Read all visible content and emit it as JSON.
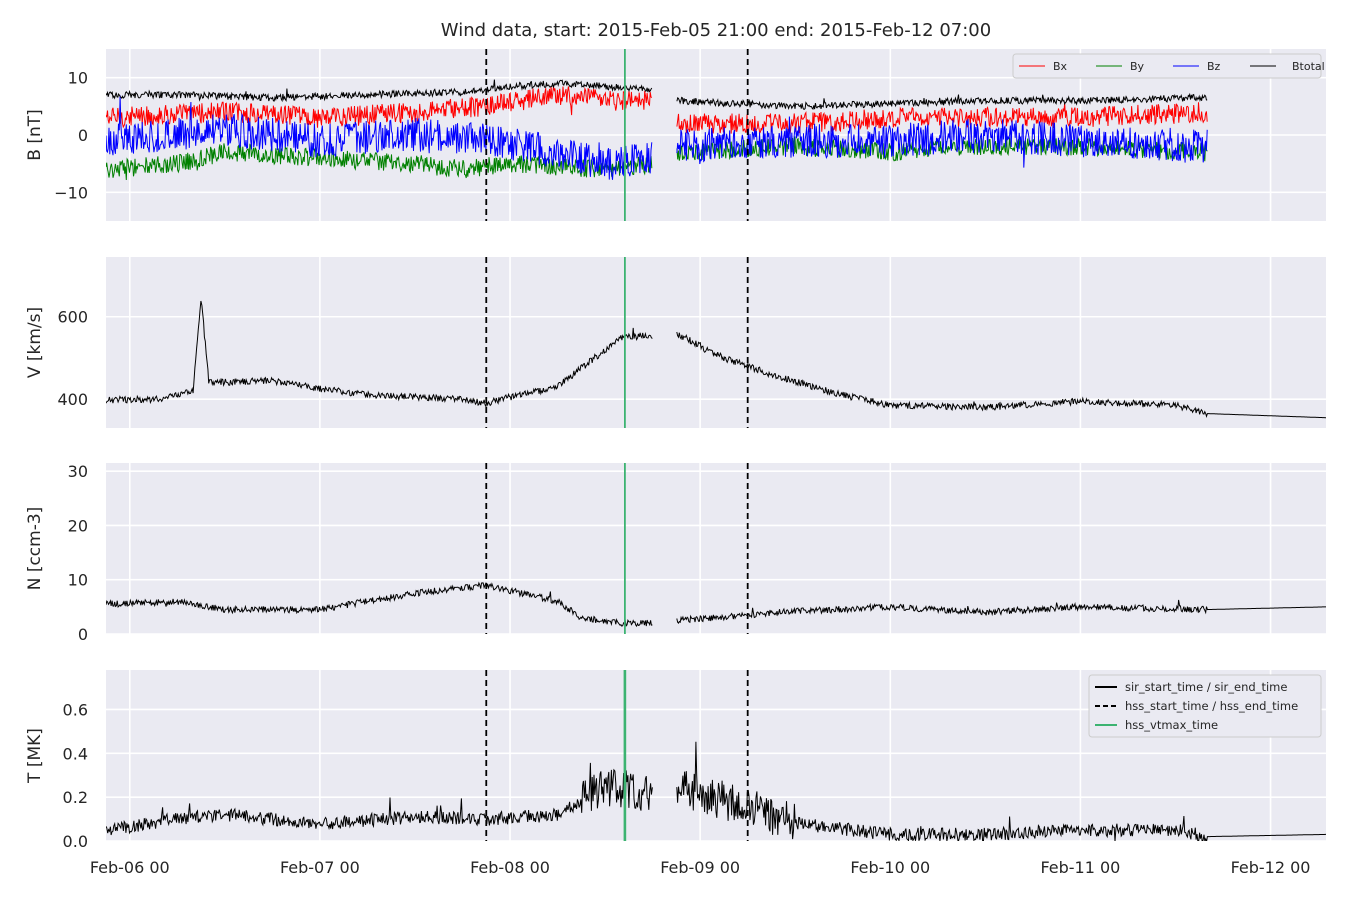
{
  "title": "Wind data, start: 2015-Feb-05 21:00  end: 2015-Feb-12 07:00",
  "chart_data": {
    "type": "line",
    "x_range": [
      "2015-02-05T21:00",
      "2015-02-12T07:00"
    ],
    "x_ticks": [
      {
        "value": "2015-02-06T00:00",
        "label": "Feb-06 00"
      },
      {
        "value": "2015-02-07T00:00",
        "label": "Feb-07 00"
      },
      {
        "value": "2015-02-08T00:00",
        "label": "Feb-08 00"
      },
      {
        "value": "2015-02-09T00:00",
        "label": "Feb-09 00"
      },
      {
        "value": "2015-02-10T00:00",
        "label": "Feb-10 00"
      },
      {
        "value": "2015-02-11T00:00",
        "label": "Feb-11 00"
      },
      {
        "value": "2015-02-12T00:00",
        "label": "Feb-12 00"
      }
    ],
    "markers": {
      "hss_start_time": "2015-02-07T21:00",
      "hss_end_time": "2015-02-09T06:00",
      "hss_vtmax_time": "2015-02-08T14:30"
    },
    "panels": [
      {
        "id": "b",
        "ylabel": "B [nT]",
        "ylim": [
          -15,
          15
        ],
        "yticks": [
          {
            "value": 10,
            "label": "10"
          },
          {
            "value": 0,
            "label": "0"
          },
          {
            "value": -10,
            "label": "−10"
          }
        ],
        "legend": {
          "placement": "top-right",
          "entries": [
            "Bx",
            "By",
            "Bz",
            "Btotal"
          ]
        },
        "data_gap": [
          "2015-02-08T18:00",
          "2015-02-08T21:00"
        ],
        "data_end": "2015-02-11T16:00",
        "series": [
          {
            "name": "Bx",
            "color": "#ff0000",
            "points": [
              [
                "2015-02-05T21:00",
                3
              ],
              [
                "2015-02-06T12:00",
                4
              ],
              [
                "2015-02-07T00:00",
                3
              ],
              [
                "2015-02-07T12:00",
                4
              ],
              [
                "2015-02-07T21:00",
                5
              ],
              [
                "2015-02-08T06:00",
                7
              ],
              [
                "2015-02-08T12:00",
                6
              ],
              [
                "2015-02-08T18:00",
                6
              ],
              [
                "2015-02-08T21:00",
                2
              ],
              [
                "2015-02-09T12:00",
                2
              ],
              [
                "2015-02-10T00:00",
                3
              ],
              [
                "2015-02-10T12:00",
                3
              ],
              [
                "2015-02-11T00:00",
                3
              ],
              [
                "2015-02-11T16:00",
                4
              ]
            ]
          },
          {
            "name": "By",
            "color": "#008000",
            "points": [
              [
                "2015-02-05T21:00",
                -6
              ],
              [
                "2015-02-06T06:00",
                -5
              ],
              [
                "2015-02-06T12:00",
                -3
              ],
              [
                "2015-02-07T00:00",
                -4
              ],
              [
                "2015-02-07T12:00",
                -5
              ],
              [
                "2015-02-07T18:00",
                -6
              ],
              [
                "2015-02-08T00:00",
                -5
              ],
              [
                "2015-02-08T12:00",
                -6
              ],
              [
                "2015-02-08T18:00",
                -5
              ],
              [
                "2015-02-08T21:00",
                -3
              ],
              [
                "2015-02-09T12:00",
                -2
              ],
              [
                "2015-02-10T00:00",
                -3
              ],
              [
                "2015-02-10T12:00",
                -2
              ],
              [
                "2015-02-11T00:00",
                -2
              ],
              [
                "2015-02-11T16:00",
                -3
              ]
            ]
          },
          {
            "name": "Bz",
            "color": "#0000ff",
            "points": [
              [
                "2015-02-05T21:00",
                -1
              ],
              [
                "2015-02-06T06:00",
                0
              ],
              [
                "2015-02-06T12:00",
                1
              ],
              [
                "2015-02-07T00:00",
                -1
              ],
              [
                "2015-02-07T12:00",
                0
              ],
              [
                "2015-02-07T21:00",
                -1
              ],
              [
                "2015-02-08T06:00",
                -3
              ],
              [
                "2015-02-08T12:00",
                -5
              ],
              [
                "2015-02-08T18:00",
                -4
              ],
              [
                "2015-02-08T21:00",
                -2
              ],
              [
                "2015-02-09T12:00",
                -1
              ],
              [
                "2015-02-10T00:00",
                -1
              ],
              [
                "2015-02-10T12:00",
                0
              ],
              [
                "2015-02-11T00:00",
                -1
              ],
              [
                "2015-02-11T16:00",
                -2
              ]
            ]
          },
          {
            "name": "Btotal",
            "color": "#000000",
            "points": [
              [
                "2015-02-05T21:00",
                7
              ],
              [
                "2015-02-06T06:00",
                7
              ],
              [
                "2015-02-06T18:00",
                6.5
              ],
              [
                "2015-02-07T06:00",
                7
              ],
              [
                "2015-02-07T18:00",
                7.5
              ],
              [
                "2015-02-08T00:00",
                8.5
              ],
              [
                "2015-02-08T06:00",
                9
              ],
              [
                "2015-02-08T12:00",
                8.5
              ],
              [
                "2015-02-08T18:00",
                8
              ],
              [
                "2015-02-08T21:00",
                6
              ],
              [
                "2015-02-09T12:00",
                5
              ],
              [
                "2015-02-10T00:00",
                5.5
              ],
              [
                "2015-02-10T12:00",
                6
              ],
              [
                "2015-02-11T00:00",
                6
              ],
              [
                "2015-02-11T16:00",
                6.5
              ]
            ]
          }
        ]
      },
      {
        "id": "v",
        "ylabel": "V [km/s]",
        "ylim": [
          330,
          745
        ],
        "yticks": [
          {
            "value": 600,
            "label": "600"
          },
          {
            "value": 400,
            "label": "400"
          }
        ],
        "data_gap": [
          "2015-02-08T18:00",
          "2015-02-08T21:00"
        ],
        "series": [
          {
            "name": "",
            "color": "#000000",
            "points": [
              [
                "2015-02-05T21:00",
                398
              ],
              [
                "2015-02-06T04:00",
                400
              ],
              [
                "2015-02-06T08:00",
                420
              ],
              [
                "2015-02-06T09:00",
                645
              ],
              [
                "2015-02-06T10:00",
                440
              ],
              [
                "2015-02-06T18:00",
                445
              ],
              [
                "2015-02-07T00:00",
                425
              ],
              [
                "2015-02-07T06:00",
                410
              ],
              [
                "2015-02-07T12:00",
                405
              ],
              [
                "2015-02-07T18:00",
                400
              ],
              [
                "2015-02-07T21:00",
                390
              ],
              [
                "2015-02-08T00:00",
                405
              ],
              [
                "2015-02-08T06:00",
                430
              ],
              [
                "2015-02-08T10:00",
                490
              ],
              [
                "2015-02-08T14:00",
                550
              ],
              [
                "2015-02-08T18:00",
                555
              ],
              [
                "2015-02-08T21:00",
                560
              ],
              [
                "2015-02-09T03:00",
                500
              ],
              [
                "2015-02-09T09:00",
                460
              ],
              [
                "2015-02-09T18:00",
                410
              ],
              [
                "2015-02-10T00:00",
                385
              ],
              [
                "2015-02-10T12:00",
                380
              ],
              [
                "2015-02-11T00:00",
                395
              ],
              [
                "2015-02-11T12:00",
                385
              ],
              [
                "2015-02-11T16:00",
                365
              ],
              [
                "2015-02-12T07:00",
                355
              ]
            ]
          }
        ]
      },
      {
        "id": "n",
        "ylabel": "N [ccm-3]",
        "ylim": [
          0,
          31.5
        ],
        "yticks": [
          {
            "value": 30,
            "label": "30"
          },
          {
            "value": 20,
            "label": "20"
          },
          {
            "value": 10,
            "label": "10"
          },
          {
            "value": 0,
            "label": "0"
          }
        ],
        "data_gap": [
          "2015-02-08T18:00",
          "2015-02-08T21:00"
        ],
        "series": [
          {
            "name": "",
            "color": "#000000",
            "points": [
              [
                "2015-02-05T21:00",
                5.5
              ],
              [
                "2015-02-06T06:00",
                6
              ],
              [
                "2015-02-06T12:00",
                4.5
              ],
              [
                "2015-02-07T00:00",
                4.5
              ],
              [
                "2015-02-07T06:00",
                6
              ],
              [
                "2015-02-07T12:00",
                7.5
              ],
              [
                "2015-02-07T18:00",
                8.5
              ],
              [
                "2015-02-07T21:00",
                9
              ],
              [
                "2015-02-08T00:00",
                8
              ],
              [
                "2015-02-08T06:00",
                6
              ],
              [
                "2015-02-08T09:00",
                3
              ],
              [
                "2015-02-08T14:00",
                2
              ],
              [
                "2015-02-08T18:00",
                2
              ],
              [
                "2015-02-08T21:00",
                2.5
              ],
              [
                "2015-02-09T06:00",
                3.5
              ],
              [
                "2015-02-09T10:00",
                4
              ],
              [
                "2015-02-10T00:00",
                5
              ],
              [
                "2015-02-10T12:00",
                4
              ],
              [
                "2015-02-11T00:00",
                5
              ],
              [
                "2015-02-11T16:00",
                4.5
              ],
              [
                "2015-02-12T07:00",
                5
              ]
            ]
          }
        ]
      },
      {
        "id": "t",
        "ylabel": "T [MK]",
        "ylim": [
          0,
          0.78
        ],
        "yticks": [
          {
            "value": 0.6,
            "label": "0.6"
          },
          {
            "value": 0.4,
            "label": "0.4"
          },
          {
            "value": 0.2,
            "label": "0.2"
          },
          {
            "value": 0.0,
            "label": "0.0"
          }
        ],
        "legend": {
          "placement": "top-right",
          "entries": [
            "sir_start_time / sir_end_time",
            "hss_start_time / hss_end_time",
            "hss_vtmax_time"
          ]
        },
        "data_gap": [
          "2015-02-08T18:00",
          "2015-02-08T21:00"
        ],
        "series": [
          {
            "name": "",
            "color": "#000000",
            "points": [
              [
                "2015-02-05T21:00",
                0.05
              ],
              [
                "2015-02-06T06:00",
                0.1
              ],
              [
                "2015-02-06T12:00",
                0.12
              ],
              [
                "2015-02-07T00:00",
                0.08
              ],
              [
                "2015-02-07T12:00",
                0.11
              ],
              [
                "2015-02-07T21:00",
                0.1
              ],
              [
                "2015-02-08T06:00",
                0.12
              ],
              [
                "2015-02-08T12:00",
                0.25
              ],
              [
                "2015-02-08T18:00",
                0.22
              ],
              [
                "2015-02-08T21:00",
                0.25
              ],
              [
                "2015-02-09T06:00",
                0.15
              ],
              [
                "2015-02-09T12:00",
                0.08
              ],
              [
                "2015-02-10T00:00",
                0.03
              ],
              [
                "2015-02-10T12:00",
                0.03
              ],
              [
                "2015-02-11T00:00",
                0.05
              ],
              [
                "2015-02-11T12:00",
                0.05
              ],
              [
                "2015-02-11T16:00",
                0.02
              ],
              [
                "2015-02-12T07:00",
                0.03
              ]
            ]
          }
        ]
      }
    ],
    "legend_styles": {
      "sir_start_time / sir_end_time": {
        "color": "#000000",
        "dash": "solid"
      },
      "hss_start_time / hss_end_time": {
        "color": "#000000",
        "dash": "dashed"
      },
      "hss_vtmax_time": {
        "color": "#3cb371",
        "dash": "solid"
      }
    },
    "colors": {
      "background": "#eaeaf2",
      "grid": "#ffffff",
      "vtmax": "#3cb371"
    }
  }
}
